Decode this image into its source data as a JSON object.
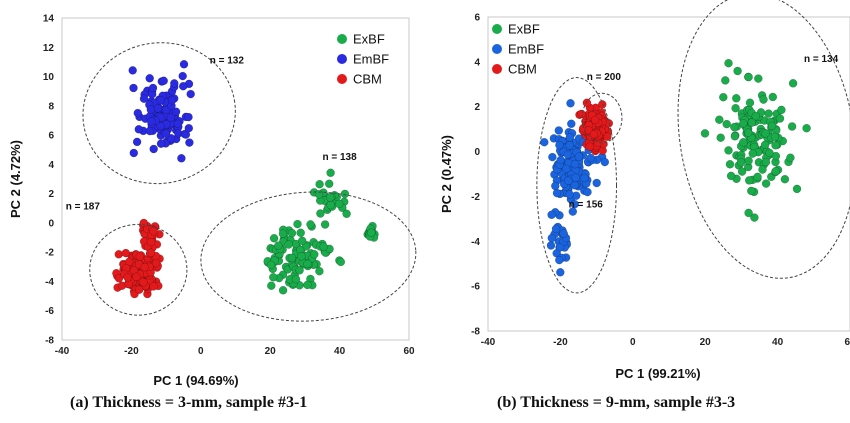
{
  "chart_data": [
    {
      "type": "scatter",
      "caption": {
        "tag": "(a)",
        "text": "Thickness = 3-mm, sample #3-1"
      },
      "xlabel": "PC 1 (94.69%)",
      "ylabel": "PC 2 (4.72%)",
      "xlim": [
        -40,
        60
      ],
      "ylim": [
        -8,
        14
      ],
      "xticks": [
        -40,
        -20,
        0,
        20,
        40,
        60
      ],
      "yticks": [
        -8,
        -6,
        -4,
        -2,
        0,
        2,
        4,
        6,
        8,
        10,
        12,
        14
      ],
      "legend": {
        "placement": "top-right"
      },
      "series": [
        {
          "name": "ExBF",
          "color": "#1aab4b",
          "count": 138,
          "clusters": [
            {
              "cx": 28,
              "cy": -2.5,
              "sx": 9,
              "sy": 1.8,
              "n": 100
            },
            {
              "cx": 38,
              "cy": 1.5,
              "sx": 4,
              "sy": 1.0,
              "n": 25
            },
            {
              "cx": 49,
              "cy": -0.6,
              "sx": 1.5,
              "sy": 0.4,
              "n": 13
            }
          ]
        },
        {
          "name": "EmBF",
          "color": "#2a2ae0",
          "count": 132,
          "clusters": [
            {
              "cx": -11,
              "cy": 7.5,
              "sx": 5.5,
              "sy": 1.9,
              "n": 132
            }
          ]
        },
        {
          "name": "CBM",
          "color": "#e31a1c",
          "count": 187,
          "clusters": [
            {
              "cx": -18,
              "cy": -3.4,
              "sx": 4.5,
              "sy": 1.0,
              "n": 150
            },
            {
              "cx": -15,
              "cy": -1.0,
              "sx": 2.0,
              "sy": 0.8,
              "n": 37
            }
          ]
        }
      ],
      "ellipses": [
        {
          "cx": -12,
          "cy": 7.5,
          "rx": 22,
          "ry": 4.8,
          "angle": 10
        },
        {
          "cx": 31,
          "cy": -2.3,
          "rx": 31,
          "ry": 4.4,
          "angle": 3
        },
        {
          "cx": -18,
          "cy": -3.2,
          "rx": 14,
          "ry": 3.1,
          "angle": 0
        }
      ],
      "annotations": [
        {
          "text": "n = 132",
          "x": 7.5,
          "y": 10.9
        },
        {
          "text": "n = 138",
          "x": 40,
          "y": 4.3
        },
        {
          "text": "n = 187",
          "x": -34,
          "y": 0.9
        }
      ]
    },
    {
      "type": "scatter",
      "caption": {
        "tag": "(b)",
        "text": "Thickness = 9-mm, sample #3-3"
      },
      "xlabel": "PC 1 (99.21%)",
      "ylabel": "PC 2 (0.47%)",
      "xlim": [
        -40,
        60
      ],
      "ylim": [
        -8,
        6
      ],
      "xticks": [
        -40,
        -20,
        0,
        20,
        40,
        60
      ],
      "yticks": [
        -8,
        -6,
        -4,
        -2,
        0,
        2,
        4,
        6
      ],
      "legend": {
        "placement": "top-left"
      },
      "series": [
        {
          "name": "ExBF",
          "color": "#1aab4b",
          "count": 134,
          "clusters": [
            {
              "cx": 35,
              "cy": 0.5,
              "sx": 8,
              "sy": 2.0,
              "n": 134
            }
          ]
        },
        {
          "name": "EmBF",
          "color": "#1b64e0",
          "count": 156,
          "clusters": [
            {
              "cx": -16,
              "cy": -0.5,
              "sx": 5,
              "sy": 1.4,
              "n": 130
            },
            {
              "cx": -20,
              "cy": -3.8,
              "sx": 1.8,
              "sy": 1.1,
              "n": 26
            }
          ]
        },
        {
          "name": "CBM",
          "color": "#e31a1c",
          "count": 200,
          "clusters": [
            {
              "cx": -10.5,
              "cy": 1.0,
              "sx": 2.5,
              "sy": 0.6,
              "n": 200
            }
          ]
        }
      ],
      "ellipses": [
        {
          "cx": 37,
          "cy": 0.7,
          "rx": 24,
          "ry": 6.4,
          "angle": 9
        },
        {
          "cx": -15.5,
          "cy": -1.5,
          "rx": 11,
          "ry": 4.8,
          "angle": 0
        },
        {
          "cx": -8.5,
          "cy": 1.5,
          "rx": 5.5,
          "ry": 1.1,
          "angle": 0
        }
      ],
      "annotations": [
        {
          "text": "n = 200",
          "x": -8,
          "y": 3.2
        },
        {
          "text": "n = 156",
          "x": -13,
          "y": -2.5
        },
        {
          "text": "n = 134",
          "x": 52,
          "y": 4
        }
      ]
    }
  ]
}
